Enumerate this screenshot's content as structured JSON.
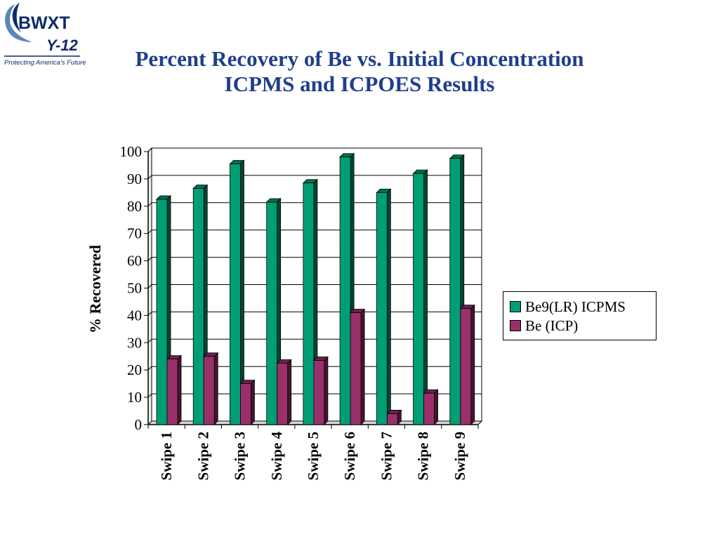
{
  "logo": {
    "line1": "BWXT",
    "line2": "Y-12",
    "tagline": "Protecting America's Future",
    "colors": {
      "text": "#0f2a6b",
      "swoosh": "#5a87b5"
    }
  },
  "title": {
    "line1": "Percent Recovery of Be vs. Initial Concentration",
    "line2": "ICPMS and ICPOES Results"
  },
  "chart_data": {
    "type": "bar",
    "title": "Percent Recovery of Be vs. Initial Concentration ICPMS and ICPOES Results",
    "xlabel": "",
    "ylabel": "% Recovered",
    "categories": [
      "Swipe 1",
      "Swipe 2",
      "Swipe 3",
      "Swipe 4",
      "Swipe 5",
      "Swipe 6",
      "Swipe 7",
      "Swipe 8",
      "Swipe 9"
    ],
    "series": [
      {
        "name": "Be9(LR) ICPMS",
        "color": "#009e74",
        "values": [
          82.5,
          86.5,
          95.5,
          81.5,
          88.5,
          98,
          85,
          92,
          97.5
        ]
      },
      {
        "name": "Be (ICP)",
        "color": "#99306a",
        "values": [
          24,
          25,
          15,
          22.5,
          23.5,
          41,
          4,
          11.5,
          42.5
        ]
      }
    ],
    "ylim": [
      0,
      100
    ],
    "yticks": [
      0,
      10,
      20,
      30,
      40,
      50,
      60,
      70,
      80,
      90,
      100
    ],
    "grid": true,
    "legend": "right"
  }
}
